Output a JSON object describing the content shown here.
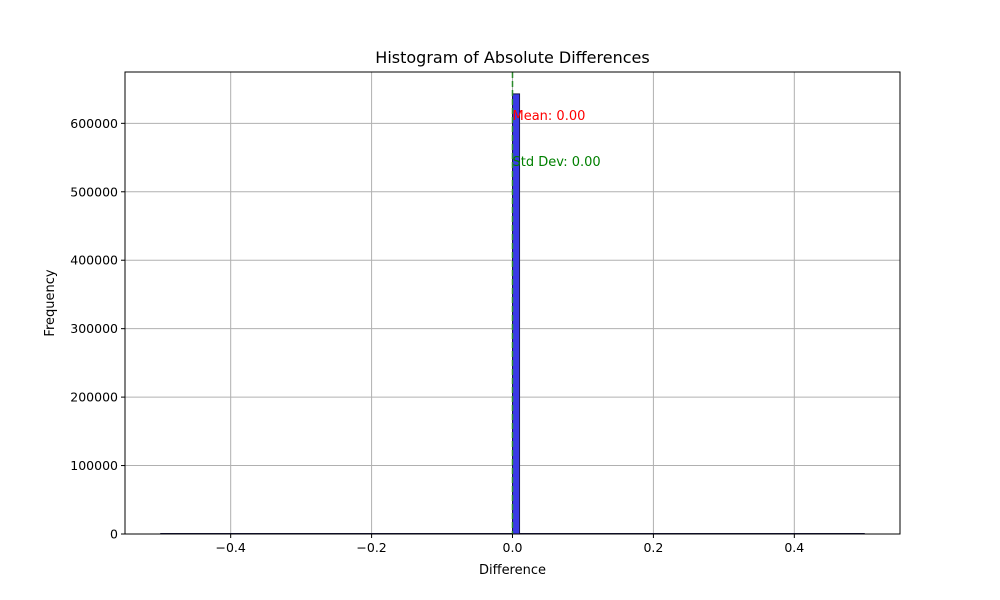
{
  "chart_data": {
    "type": "bar",
    "title": "Histogram of Absolute Differences",
    "xlabel": "Difference",
    "ylabel": "Frequency",
    "xlim": [
      -0.55,
      0.55
    ],
    "ylim": [
      0,
      675000
    ],
    "x_ticks": [
      -0.4,
      -0.2,
      0.0,
      0.2,
      0.4
    ],
    "x_tick_labels": [
      "−0.4",
      "−0.2",
      "0.0",
      "0.2",
      "0.4"
    ],
    "y_ticks": [
      0,
      100000,
      200000,
      300000,
      400000,
      500000,
      600000
    ],
    "y_tick_labels": [
      "0",
      "100000",
      "200000",
      "300000",
      "400000",
      "500000",
      "600000"
    ],
    "grid": true,
    "bins": [
      {
        "x0": 0.0,
        "x1": 0.01,
        "value": 643000
      }
    ],
    "range": [
      -0.5,
      0.5
    ],
    "bar_color": "#3a3ae6",
    "edge_color": "#1a1a4a",
    "vlines": [
      {
        "x": 0.0,
        "color": "#2a8a2a",
        "style": "dashed"
      }
    ],
    "annotations": [
      {
        "text": "Mean: 0.00",
        "x": 0.0,
        "y": 612000,
        "color": "#ff0000"
      },
      {
        "text": "Std Dev: 0.00",
        "x": 0.0,
        "y": 545000,
        "color": "#008000"
      }
    ]
  }
}
